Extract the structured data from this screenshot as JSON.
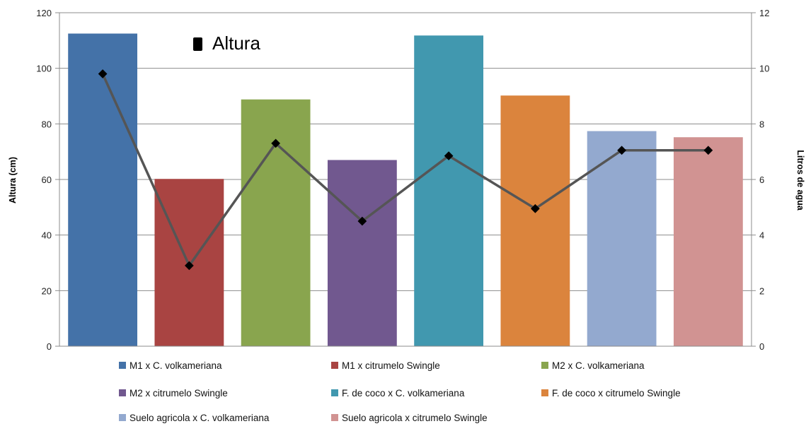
{
  "chart_data": {
    "type": "bar",
    "annotation": "Altura",
    "ylabel": "Altura (cm)",
    "y2label": "Litros de agua",
    "ylim": [
      0,
      120
    ],
    "y2lim": [
      0,
      12
    ],
    "yticks": [
      "0",
      "20",
      "40",
      "60",
      "80",
      "100",
      "120"
    ],
    "y2ticks": [
      "0",
      "2",
      "4",
      "6",
      "8",
      "10",
      "12"
    ],
    "grid": true,
    "legend_position": "bottom",
    "categories": [
      "M1 x C. volkameriana",
      "M1 x citrumelo Swingle",
      "M2 x C. volkameriana",
      "M2  x citrumelo Swingle",
      "F. de coco x C. volkameriana",
      "F. de coco  x citrumelo Swingle",
      "Suelo agricola  x C. volkameriana",
      "Suelo agricola  x citrumelo Swingle"
    ],
    "colors": [
      "#4472A8",
      "#A94442",
      "#89A54E",
      "#71588F",
      "#4198AF",
      "#DB843D",
      "#93A9CF",
      "#D19392"
    ],
    "series": [
      {
        "axis": "left",
        "type": "bar",
        "values": [
          112.5,
          60.2,
          88.8,
          67.0,
          111.8,
          90.2,
          77.4,
          75.2
        ]
      },
      {
        "axis": "right",
        "type": "line",
        "color": "#555555",
        "marker_color": "#000000",
        "values": [
          9.8,
          2.9,
          7.3,
          4.5,
          6.85,
          4.95,
          7.05,
          7.05
        ]
      }
    ]
  }
}
